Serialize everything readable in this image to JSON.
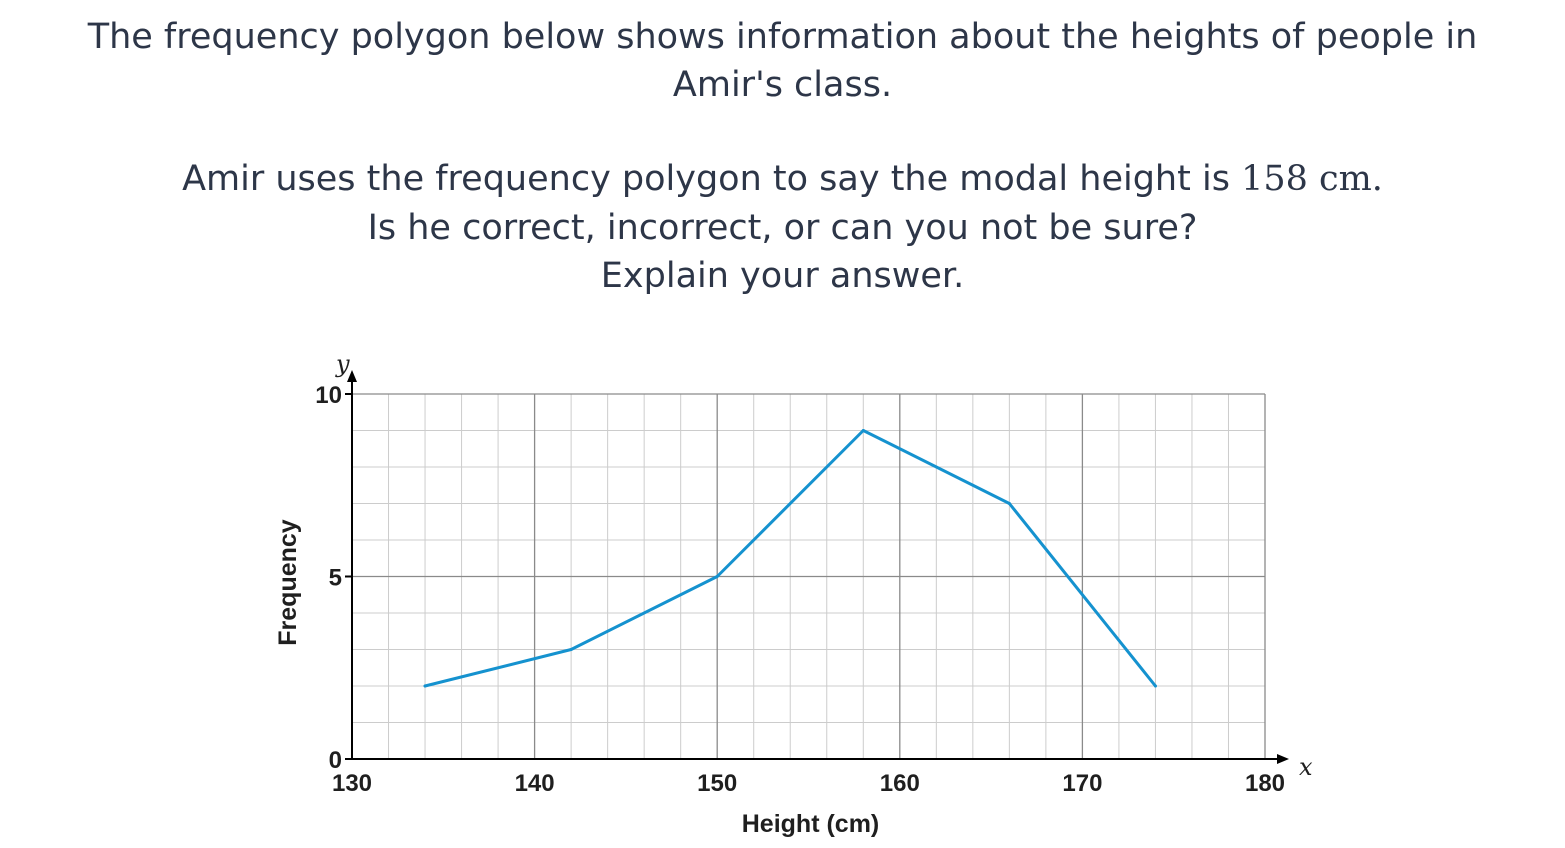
{
  "question": {
    "line1": "The frequency polygon below shows information about the heights of people in",
    "line2": "Amir's class.",
    "line3_text": "Amir uses the frequency polygon to say the modal height is ",
    "line3_value": "158 cm.",
    "line4": "Is he correct, incorrect, or can you not be sure?",
    "line5": "Explain your answer."
  },
  "chart_data": {
    "type": "line",
    "title": "",
    "xlabel": "Height (cm)",
    "ylabel": "Frequency",
    "x_axis_symbol": "x",
    "y_axis_symbol": "y",
    "xlim": [
      130,
      180
    ],
    "ylim": [
      0,
      10
    ],
    "x_ticks": [
      130,
      140,
      150,
      160,
      170,
      180
    ],
    "y_ticks": [
      0,
      5,
      10
    ],
    "grid": true,
    "series": [
      {
        "x": [
          134,
          142,
          150,
          158,
          166,
          174
        ],
        "y": [
          2,
          3,
          5,
          9,
          7,
          2
        ]
      }
    ],
    "colors": {
      "line": "#1592cf",
      "grid_major": "#8a8a8a",
      "grid_minor": "#cccccc",
      "axis": "#000000"
    }
  }
}
